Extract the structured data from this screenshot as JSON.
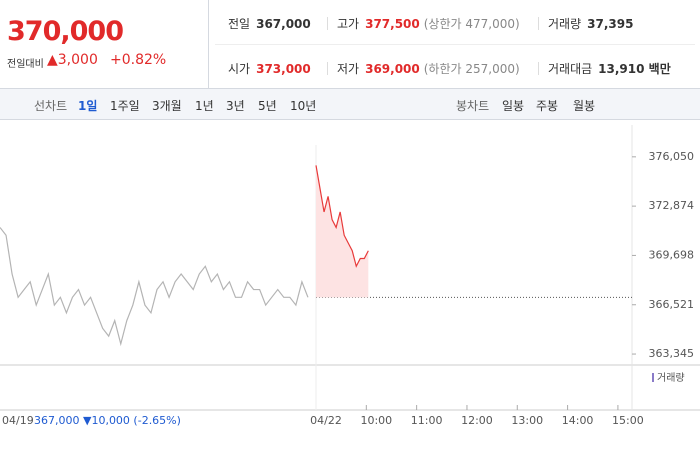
{
  "price": {
    "current": "370,000",
    "change_label": "전일대비",
    "change": "▲3,000",
    "change_pct": "+0.82%"
  },
  "info": {
    "rows": [
      [
        [
          "전일",
          "367,000",
          null
        ],
        [
          "고가",
          "377,500",
          "(상한가 477,000)"
        ],
        [
          "거래량",
          "37,395",
          null
        ]
      ],
      [
        [
          "시가",
          "373,000",
          null
        ],
        [
          "저가",
          "369,000",
          "(하한가 257,000)"
        ],
        [
          "거래대금",
          "13,910 백만",
          null
        ]
      ]
    ]
  },
  "tabs": {
    "line_label": "선차트",
    "line_tabs": [
      "1일",
      "1주일",
      "3개월",
      "1년",
      "3년",
      "5년",
      "10년"
    ],
    "candle_label": "봉차트",
    "candle_tabs": [
      "일봉",
      "주봉",
      "월봉"
    ]
  },
  "footer": {
    "prev_date": "04/19",
    "prev_summary": "367,000 ▼10,000 (-2.65%)",
    "volume_legend": "거래량"
  },
  "chart_data": {
    "type": "line",
    "ylim": [
      362640,
      378100
    ],
    "yticks": [
      {
        "value": 376050,
        "label": "376,050"
      },
      {
        "value": 372874,
        "label": "372,874"
      },
      {
        "value": 369698,
        "label": "369,698"
      },
      {
        "value": 366521,
        "label": "366,521"
      },
      {
        "value": 363345,
        "label": "363,345"
      }
    ],
    "xlim": [
      2.72,
      15.28
    ],
    "xticks": [
      {
        "value": 9,
        "label": "04/22"
      },
      {
        "value": 10,
        "label": "10:00"
      },
      {
        "value": 11,
        "label": "11:00"
      },
      {
        "value": 12,
        "label": "12:00"
      },
      {
        "value": 13,
        "label": "13:00"
      },
      {
        "value": 14,
        "label": "14:00"
      },
      {
        "value": 15,
        "label": "15:00"
      }
    ],
    "ref_value": 367000,
    "series": [
      {
        "color": "#b4b4b4",
        "x": [
          2.72,
          2.84,
          2.96,
          3.08,
          3.2,
          3.32,
          3.44,
          3.56,
          3.68,
          3.8,
          3.92,
          4.04,
          4.16,
          4.28,
          4.4,
          4.52,
          4.64,
          4.76,
          4.88,
          5.0,
          5.12,
          5.24,
          5.36,
          5.48,
          5.6,
          5.72,
          5.84,
          5.96,
          6.08,
          6.2,
          6.32,
          6.44,
          6.56,
          6.68,
          6.8,
          6.92,
          7.04,
          7.16,
          7.28,
          7.4,
          7.52,
          7.64,
          7.76,
          7.88,
          8.0,
          8.12,
          8.24,
          8.36,
          8.48,
          8.6,
          8.72,
          8.84
        ],
        "values": [
          371500,
          371000,
          368500,
          367000,
          367500,
          368000,
          366500,
          367500,
          368500,
          366500,
          367000,
          366000,
          367000,
          367500,
          366500,
          367000,
          366000,
          365000,
          364500,
          365500,
          364000,
          365500,
          366500,
          368000,
          366500,
          366000,
          367500,
          368000,
          367000,
          368000,
          368500,
          368000,
          367500,
          368500,
          369000,
          368000,
          368500,
          367500,
          368000,
          367000,
          367000,
          368000,
          367500,
          367500,
          366500,
          367000,
          367500,
          367000,
          367000,
          366500,
          368000,
          367000
        ]
      },
      {
        "color": "#e83a3a",
        "x": [
          9.0,
          9.08,
          9.16,
          9.24,
          9.32,
          9.4,
          9.48,
          9.56,
          9.64,
          9.72,
          9.8,
          9.88,
          9.96,
          10.04
        ],
        "values": [
          375500,
          374000,
          372500,
          373500,
          372000,
          371500,
          372500,
          371000,
          370500,
          370000,
          369000,
          369500,
          369500,
          370000
        ]
      }
    ]
  }
}
